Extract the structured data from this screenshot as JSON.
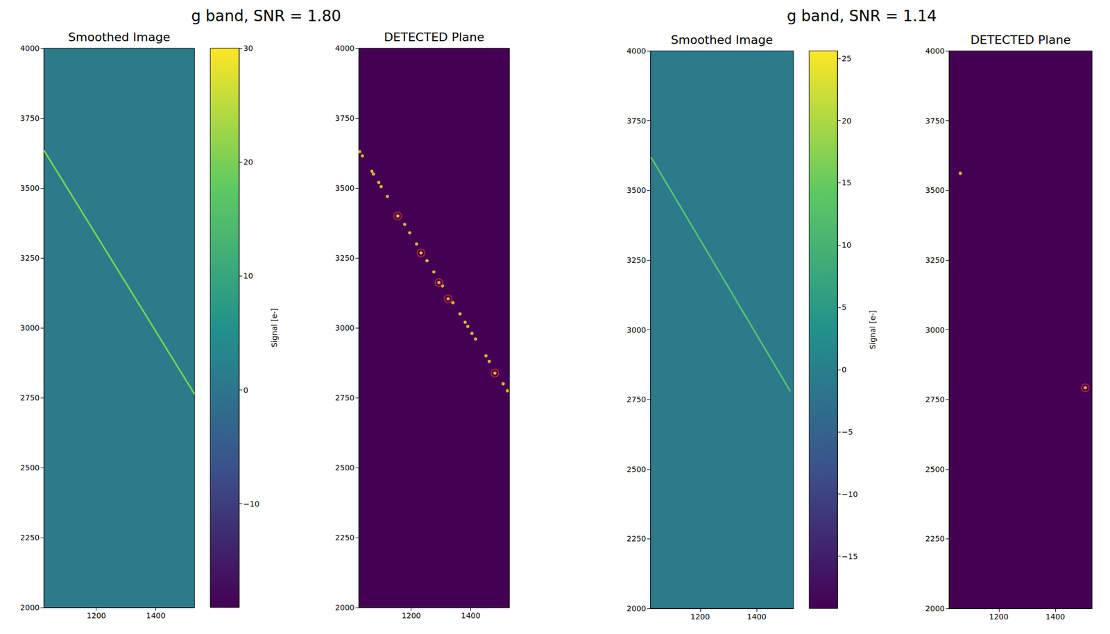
{
  "chart_data": [
    {
      "title": "g band, SNR = 1.80",
      "panels": [
        {
          "type": "line",
          "title": "Smoothed Image",
          "xlim": [
            1024,
            1530
          ],
          "xticks": [
            1200,
            1400
          ],
          "ylim": [
            2000,
            4000
          ],
          "yticks": [
            2000,
            2250,
            2500,
            2750,
            3000,
            3250,
            3500,
            3750,
            4000
          ],
          "series": [
            {
              "x": [
                1024,
                1530
              ],
              "values": [
                3635,
                2763
              ],
              "color": "#7ad151"
            }
          ],
          "colorbar": {
            "label": "Signal [e-]",
            "range": [
              -19.1,
              30
            ],
            "ticks": [
              {
                "value": -10,
                "label": "−10"
              },
              0,
              10,
              20,
              30
            ]
          }
        },
        {
          "type": "scatter",
          "title": "DETECTED Plane",
          "xlim": [
            1024,
            1530
          ],
          "xticks": [
            1200,
            1400
          ],
          "ylim": [
            2000,
            4000
          ],
          "yticks": [
            2000,
            2250,
            2500,
            2750,
            3000,
            3250,
            3500,
            3750,
            4000
          ],
          "series": [
            {
              "x": [
                1027,
                1036,
                1068,
                1073,
                1091,
                1099,
                1120,
                1155,
                1178,
                1195,
                1218,
                1233,
                1253,
                1276,
                1293,
                1305,
                1324,
                1340,
                1364,
                1381,
                1390,
                1404,
                1416,
                1451,
                1462,
                1481,
                1509,
                1523
              ],
              "values": [
                3630,
                3615,
                3560,
                3550,
                3520,
                3505,
                3470,
                3400,
                3370,
                3340,
                3300,
                3268,
                3240,
                3200,
                3162,
                3150,
                3104,
                3090,
                3050,
                3020,
                3005,
                2980,
                2960,
                2900,
                2880,
                2838,
                2800,
                2775
              ],
              "color": "#fde725",
              "marker": "circle"
            },
            {
              "x": [
                1155,
                1233,
                1293,
                1324,
                1481
              ],
              "values": [
                3400,
                3268,
                3162,
                3104,
                2838
              ],
              "color": "#d62728",
              "marker": "ring"
            }
          ]
        }
      ]
    },
    {
      "title": "g band, SNR = 1.14",
      "panels": [
        {
          "type": "line",
          "title": "Smoothed Image",
          "xlim": [
            1024,
            1530
          ],
          "xticks": [
            1200,
            1400
          ],
          "ylim": [
            2000,
            4000
          ],
          "yticks": [
            2000,
            2250,
            2500,
            2750,
            3000,
            3250,
            3500,
            3750,
            4000
          ],
          "series": [
            {
              "x": [
                1026,
                1519
              ],
              "values": [
                3619,
                2779
              ],
              "color": "#5cbf6e"
            }
          ],
          "colorbar": {
            "label": "Signal [e-]",
            "range": [
              -19.2,
              25.6
            ],
            "ticks": [
              {
                "value": -15,
                "label": "−15"
              },
              {
                "value": -10,
                "label": "−10"
              },
              {
                "value": -5,
                "label": "−5"
              },
              0,
              5,
              10,
              15,
              20,
              25
            ]
          }
        },
        {
          "type": "scatter",
          "title": "DETECTED Plane",
          "xlim": [
            1024,
            1530
          ],
          "xticks": [
            1200,
            1400
          ],
          "ylim": [
            2000,
            4000
          ],
          "yticks": [
            2000,
            2250,
            2500,
            2750,
            3000,
            3250,
            3500,
            3750,
            4000
          ],
          "series": [
            {
              "x": [
                1064,
                1506
              ],
              "values": [
                3561,
                2792
              ],
              "color": "#fde725",
              "marker": "circle"
            },
            {
              "x": [
                1506
              ],
              "values": [
                2792
              ],
              "color": "#d62728",
              "marker": "ring"
            }
          ]
        }
      ]
    }
  ]
}
